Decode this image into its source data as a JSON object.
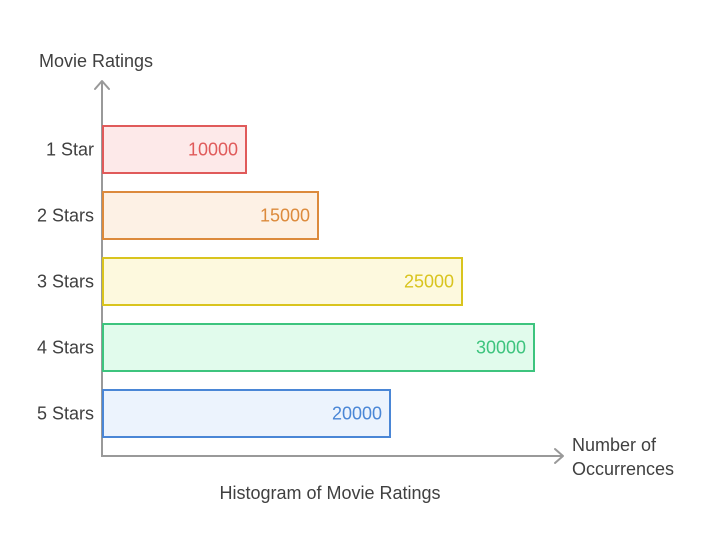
{
  "chart_data": {
    "type": "bar",
    "orientation": "horizontal",
    "title": "Histogram of Movie Ratings",
    "ylabel": "Movie Ratings",
    "xlabel": "Number of Occurrences",
    "xlabel_lines": [
      "Number of",
      "Occurrences"
    ],
    "categories": [
      "1 Star",
      "2 Stars",
      "3 Stars",
      "4 Stars",
      "5 Stars"
    ],
    "values": [
      10000,
      15000,
      25000,
      30000,
      20000
    ],
    "value_labels": [
      "10000",
      "15000",
      "25000",
      "30000",
      "20000"
    ],
    "xlim": [
      0,
      30000
    ],
    "grid": false,
    "colors": [
      {
        "stroke": "#e05a5a",
        "fill": "#fde9e9",
        "text": "#e05a5a"
      },
      {
        "stroke": "#dc8a3c",
        "fill": "#fdf1e5",
        "text": "#dc8a3c"
      },
      {
        "stroke": "#d9c41e",
        "fill": "#fdf9de",
        "text": "#d9c41e"
      },
      {
        "stroke": "#3dc47e",
        "fill": "#e1fbec",
        "text": "#3dc47e"
      },
      {
        "stroke": "#4a86d6",
        "fill": "#ecf3fd",
        "text": "#4a86d6"
      }
    ],
    "axis_color": "#999999"
  }
}
